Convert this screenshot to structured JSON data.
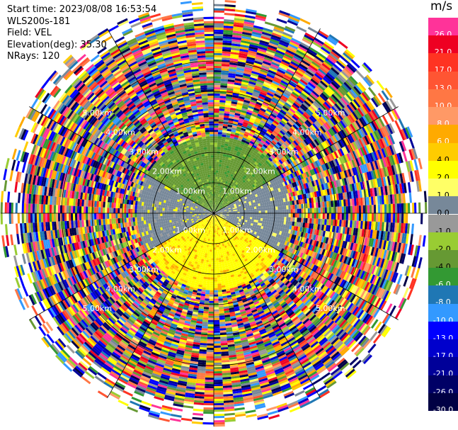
{
  "header": {
    "start_time": "Start time: 2023/08/08 16:53:54",
    "instrument": "WLS200s-181",
    "field": "Field: VEL",
    "elevation": "Elevation(deg): 35.30",
    "nrays": "NRays: 120"
  },
  "colorbar": {
    "unit": "m/s",
    "levels": [
      {
        "label": "26.0",
        "color": "#ff3399",
        "text_color": "#ffffff"
      },
      {
        "label": "21.0",
        "color": "#ee0022",
        "text_color": "#ffffff"
      },
      {
        "label": "17.0",
        "color": "#ff3322",
        "text_color": "#ffffff"
      },
      {
        "label": "13.0",
        "color": "#ff5533",
        "text_color": "#ffffff"
      },
      {
        "label": "10.0",
        "color": "#ff7744",
        "text_color": "#ffffff"
      },
      {
        "label": "8.0",
        "color": "#ff9966",
        "text_color": "#ffffff"
      },
      {
        "label": "6.0",
        "color": "#ffaa00",
        "text_color": "#ffffff"
      },
      {
        "label": "4.0",
        "color": "#ffcc00",
        "text_color": "#000000"
      },
      {
        "label": "2.0",
        "color": "#ffff00",
        "text_color": "#000000"
      },
      {
        "label": "1.0",
        "color": "#ffff66",
        "text_color": "#000000"
      },
      {
        "label": "0.0",
        "color": "#778899",
        "text_color": "#000000"
      },
      {
        "label": "-1.0",
        "color": "#999999",
        "text_color": "#000000"
      },
      {
        "label": "-2.0",
        "color": "#99cc33",
        "text_color": "#000000"
      },
      {
        "label": "-4.0",
        "color": "#669933",
        "text_color": "#000000"
      },
      {
        "label": "-6.0",
        "color": "#339933",
        "text_color": "#ffffff"
      },
      {
        "label": "-8.0",
        "color": "#1f77b4",
        "text_color": "#ffffff"
      },
      {
        "label": "-10.0",
        "color": "#3399ff",
        "text_color": "#ffffff"
      },
      {
        "label": "-13.0",
        "color": "#0000ff",
        "text_color": "#ffffff"
      },
      {
        "label": "-17.0",
        "color": "#0000cc",
        "text_color": "#ffffff"
      },
      {
        "label": "-21.0",
        "color": "#000099",
        "text_color": "#ffffff"
      },
      {
        "label": "-26.0",
        "color": "#000066",
        "text_color": "#ffffff"
      },
      {
        "label": "-30.0",
        "color": "#000044",
        "text_color": "#ffffff"
      }
    ]
  },
  "chart_data": {
    "type": "heatmap",
    "projection": "polar",
    "nrays": 120,
    "max_range_km": 7.0,
    "range_rings_km": [
      1.0,
      2.0,
      3.0,
      4.0,
      5.0
    ],
    "range_ring_labels": [
      "1.00km",
      "2.00km",
      "3.00km",
      "4.00km",
      "5.00km"
    ],
    "azimuth_spokes_deg": [
      0,
      30,
      60,
      90,
      120,
      150,
      180,
      210,
      240,
      270,
      300,
      330
    ],
    "value_unit": "m/s",
    "zones": [
      {
        "description": "north near field",
        "az_range_deg": [
          300,
          60
        ],
        "range_km": [
          0,
          2.5
        ],
        "dominant_values": [
          -4.0,
          -2.0,
          -6.0
        ]
      },
      {
        "description": "east near field",
        "az_range_deg": [
          60,
          120
        ],
        "range_km": [
          0,
          2.5
        ],
        "dominant_values": [
          0.0,
          1.0
        ]
      },
      {
        "description": "south near field",
        "az_range_deg": [
          120,
          240
        ],
        "range_km": [
          0,
          2.5
        ],
        "dominant_values": [
          2.0,
          4.0,
          6.0
        ]
      },
      {
        "description": "west near field",
        "az_range_deg": [
          240,
          300
        ],
        "range_km": [
          0,
          2.5
        ],
        "dominant_values": [
          0.0,
          -1.0,
          2.0
        ]
      },
      {
        "description": "outer noise",
        "az_range_deg": [
          0,
          360
        ],
        "range_km": [
          4.0,
          7.0
        ],
        "dominant_values": [
          "random"
        ]
      }
    ]
  }
}
